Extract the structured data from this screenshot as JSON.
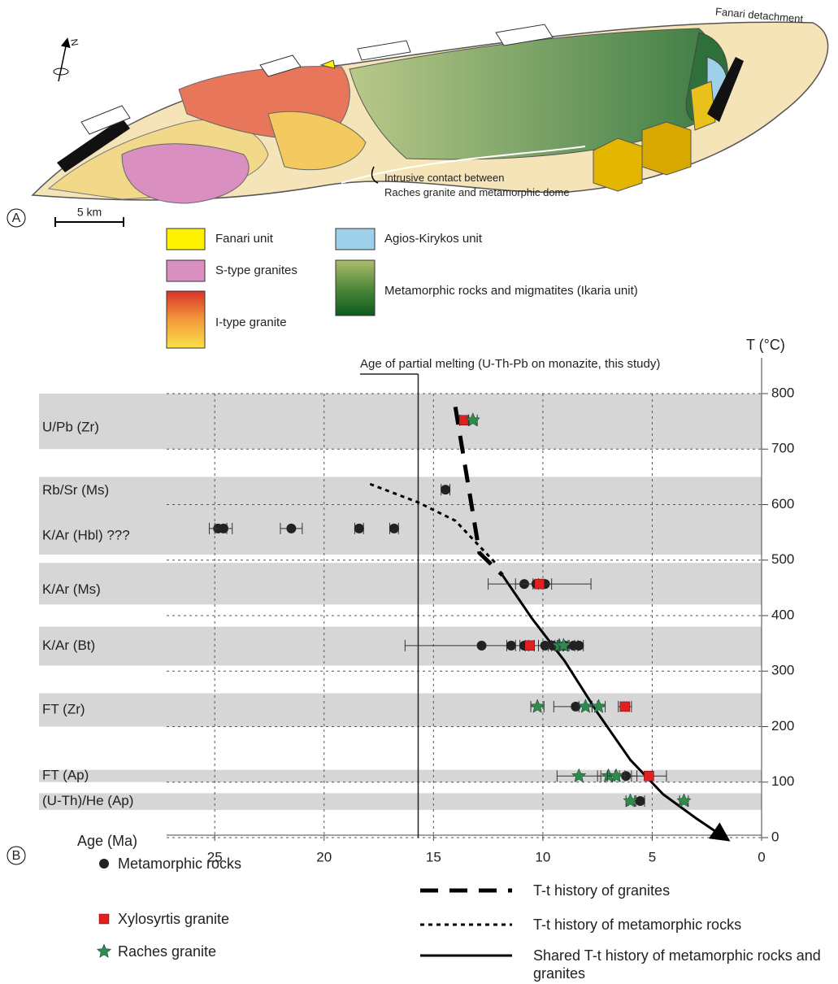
{
  "panel_labels": [
    "A",
    "B"
  ],
  "map": {
    "detachment": "Fanari detachment",
    "north": "N",
    "scale": "5 km",
    "contact": [
      "Intrusive contact between",
      "Raches granite and metamorphic dome"
    ],
    "legend": [
      "Fanari unit",
      "S-type granites",
      "I-type granite",
      "Agios-Kirykos unit",
      "Metamorphic rocks and migmatites (Ikaria unit)"
    ]
  },
  "chart_data": {
    "type": "scatter",
    "xlabel": "Age (Ma)",
    "ylabel": "T (°C)",
    "xlim": [
      27.2,
      0
    ],
    "xticks": [
      25,
      20,
      15,
      10,
      5,
      0
    ],
    "ylim": [
      0,
      800
    ],
    "yticks": [
      0,
      100,
      200,
      300,
      400,
      500,
      600,
      700,
      800
    ],
    "grid": true,
    "bands": [
      {
        "label": "U/Pb (Zr)",
        "range": [
          700,
          800
        ]
      },
      {
        "label": "Rb/Sr (Ms)",
        "range": [
          600,
          650
        ]
      },
      {
        "label": "K/Ar (Hbl)  ???",
        "range": [
          510,
          600
        ]
      },
      {
        "label": "K/Ar (Ms)",
        "range": [
          420,
          495
        ]
      },
      {
        "label": "K/Ar (Bt)",
        "range": [
          310,
          380
        ]
      },
      {
        "label": "FT (Zr)",
        "range": [
          200,
          260
        ]
      },
      {
        "label": "FT (Ap)",
        "range": [
          100,
          122
        ]
      },
      {
        "label": "(U-Th)/He (Ap)",
        "range": [
          50,
          80
        ]
      }
    ],
    "annotation": {
      "text": "Age of partial melting (U-Th-Pb on monazite, this study)",
      "x": 15.7
    },
    "series": [
      {
        "name": "Metamorphic rocks",
        "color": "#222222",
        "marker": "circle",
        "x": [
          14.45,
          24.85,
          24.6,
          21.5,
          18.4,
          16.8,
          10.85,
          10.3,
          9.9,
          12.8,
          11.45,
          10.85,
          9.9,
          9.55,
          9.0,
          8.6,
          8.35,
          8.5,
          6.2,
          5.55
        ],
        "values": [
          627,
          557,
          557,
          557,
          557,
          557,
          457,
          457,
          457,
          346,
          346,
          346,
          346,
          346,
          346,
          346,
          346,
          236,
          111,
          66
        ],
        "xerr": [
          0.2,
          0.4,
          0.4,
          0.5,
          0.2,
          0.2,
          0.4,
          null,
          0.3,
          3.5,
          0.2,
          0.2,
          0.3,
          0.2,
          null,
          0.2,
          0.2,
          1.0,
          0.5,
          0.2
        ]
      },
      {
        "name": "Xylosyrtis granite",
        "color": "#e02020",
        "marker": "square",
        "x": [
          13.6,
          10.15,
          10.6,
          6.25,
          5.15
        ],
        "values": [
          752,
          457,
          346,
          236,
          111
        ],
        "xerr": [
          0.2,
          2.35,
          0.2,
          0.3,
          0.8
        ]
      },
      {
        "name": "Raches granite",
        "color": "#2e8b4a",
        "marker": "star",
        "x": [
          13.2,
          9.25,
          9.05,
          10.25,
          8.05,
          7.45,
          8.35,
          7.0,
          6.65,
          6.0,
          3.55
        ],
        "values": [
          752,
          346,
          346,
          236,
          236,
          236,
          111,
          111,
          111,
          66,
          66
        ],
        "xerr": [
          0.2,
          0.2,
          0.2,
          0.3,
          0.3,
          0.3,
          1.0,
          0.5,
          0.4,
          0.2,
          0.2
        ]
      }
    ],
    "curves": [
      {
        "name": "T-t history of granites",
        "style": "dashed",
        "color": "#000000",
        "x": [
          14.0,
          12.9,
          11.85
        ],
        "values": [
          776,
          513,
          473
        ]
      },
      {
        "name": "T-t history of metamorphic rocks",
        "style": "dotted",
        "color": "#000000",
        "x": [
          17.9,
          15.7,
          14.0,
          12.15
        ],
        "values": [
          637,
          604,
          571,
          494
        ]
      },
      {
        "name": "Shared T-t history of metamorphic rocks and granites",
        "style": "solid",
        "color": "#000000",
        "arrow": true,
        "x": [
          11.85,
          10.5,
          9.0,
          7.5,
          6.0,
          4.5,
          3.0,
          1.8
        ],
        "values": [
          473,
          395,
          318,
          225,
          140,
          78,
          35,
          3
        ]
      }
    ]
  }
}
